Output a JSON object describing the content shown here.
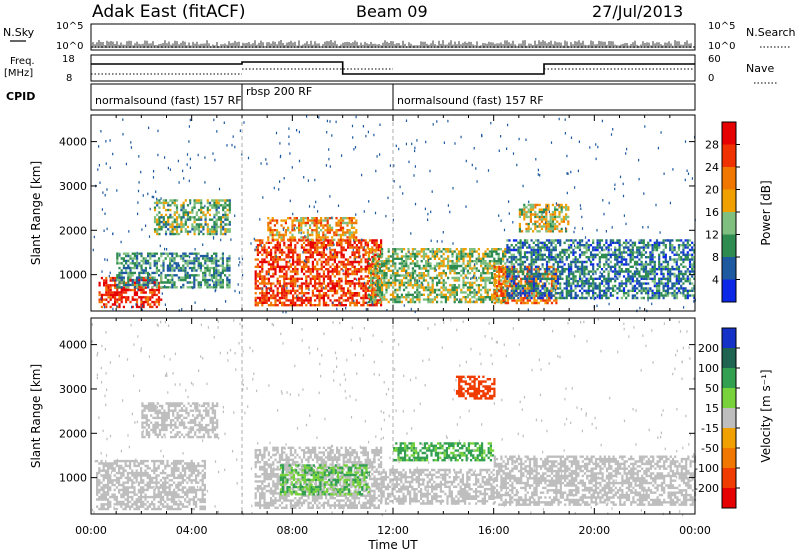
{
  "header": {
    "station": "Adak East (fitACF)",
    "beam": "Beam 09",
    "date": "27/Jul/2013"
  },
  "strip_labels": {
    "nsky": "N.Sky",
    "nsky_ticks": [
      "10^5",
      "10^0"
    ],
    "nsearch": "N.Search",
    "nsearch_ticks": [
      "10^5",
      "10^0"
    ],
    "freq": "Freq.",
    "freq_unit": "[MHz]",
    "freq_ticks": [
      "18",
      "8"
    ],
    "nave": "Nave",
    "nave_ticks": [
      "60",
      "0"
    ],
    "cpid": "CPID"
  },
  "cpid_segments": [
    {
      "label": "normalsound (fast) 157 RF",
      "start_hour": 0
    },
    {
      "label": "rbsp 200 RF",
      "start_hour": 6
    },
    {
      "label": "normalsound (fast) 157 RF",
      "start_hour": 12
    }
  ],
  "chart_data": [
    {
      "type": "heatmap",
      "title": "Power",
      "ylabel": "Slant Range [km]",
      "xlim_hours": [
        0,
        24
      ],
      "ylim": [
        180,
        4600
      ],
      "yticks": [
        "1000",
        "2000",
        "3000",
        "4000"
      ],
      "colorbar_label": "Power [dB]",
      "colorbar_ticks": [
        "4",
        "8",
        "12",
        "16",
        "20",
        "24",
        "28"
      ],
      "colorbar_colors": [
        "#0a28e6",
        "#1e5aa0",
        "#2e8c50",
        "#7fc080",
        "#f0a000",
        "#f07800",
        "#f03200",
        "#e60000"
      ],
      "regions": [
        {
          "from": 0.3,
          "to": 2.8,
          "rmin": 300,
          "rmax": 950,
          "level": 28
        },
        {
          "from": 1.0,
          "to": 5.5,
          "rmin": 700,
          "rmax": 1500,
          "level": 10
        },
        {
          "from": 2.5,
          "to": 5.5,
          "rmin": 1900,
          "rmax": 2700,
          "level": 12
        },
        {
          "from": 6.5,
          "to": 11.5,
          "rmin": 300,
          "rmax": 1800,
          "level": 26
        },
        {
          "from": 7.0,
          "to": 10.5,
          "rmin": 1800,
          "rmax": 2300,
          "level": 20
        },
        {
          "from": 11.0,
          "to": 16.5,
          "rmin": 400,
          "rmax": 1600,
          "level": 14
        },
        {
          "from": 16.0,
          "to": 18.5,
          "rmin": 350,
          "rmax": 1200,
          "level": 22
        },
        {
          "from": 16.5,
          "to": 24.0,
          "rmin": 500,
          "rmax": 1800,
          "level": 8
        },
        {
          "from": 17.0,
          "to": 19.0,
          "rmin": 2000,
          "rmax": 2600,
          "level": 16
        }
      ]
    },
    {
      "type": "heatmap",
      "title": "Velocity",
      "ylabel": "Slant Range [km]",
      "xlabel": "Time UT",
      "xlim_hours": [
        0,
        24
      ],
      "ylim": [
        180,
        4600
      ],
      "xticks": [
        "00:00",
        "04:00",
        "08:00",
        "12:00",
        "16:00",
        "20:00",
        "00:00"
      ],
      "yticks": [
        "1000",
        "2000",
        "3000",
        "4000"
      ],
      "colorbar_label": "Velocity [m s⁻¹]",
      "colorbar_ticks": [
        "200",
        "100",
        "50",
        "15",
        "-15",
        "-50",
        "-100",
        "-200"
      ],
      "colorbar_colors": [
        "#1432c8",
        "#1e6450",
        "#32a050",
        "#78d23c",
        "#bebebe",
        "#f0a000",
        "#f07800",
        "#f03c00",
        "#e60000"
      ],
      "regions": [
        {
          "from": 0.2,
          "to": 4.5,
          "rmin": 300,
          "rmax": 1400,
          "level": 0
        },
        {
          "from": 6.5,
          "to": 11.5,
          "rmin": 300,
          "rmax": 1700,
          "level": 0
        },
        {
          "from": 7.5,
          "to": 11.0,
          "rmin": 600,
          "rmax": 1300,
          "level": 30
        },
        {
          "from": 12.0,
          "to": 16.0,
          "rmin": 1400,
          "rmax": 1800,
          "level": 40
        },
        {
          "from": 11.5,
          "to": 16.0,
          "rmin": 400,
          "rmax": 1200,
          "level": 0
        },
        {
          "from": 16.0,
          "to": 24.0,
          "rmin": 400,
          "rmax": 1500,
          "level": 0
        },
        {
          "from": 2.0,
          "to": 5.0,
          "rmin": 1900,
          "rmax": 2700,
          "level": 0
        },
        {
          "from": 14.5,
          "to": 16.0,
          "rmin": 2800,
          "rmax": 3300,
          "level": -150
        }
      ]
    }
  ]
}
